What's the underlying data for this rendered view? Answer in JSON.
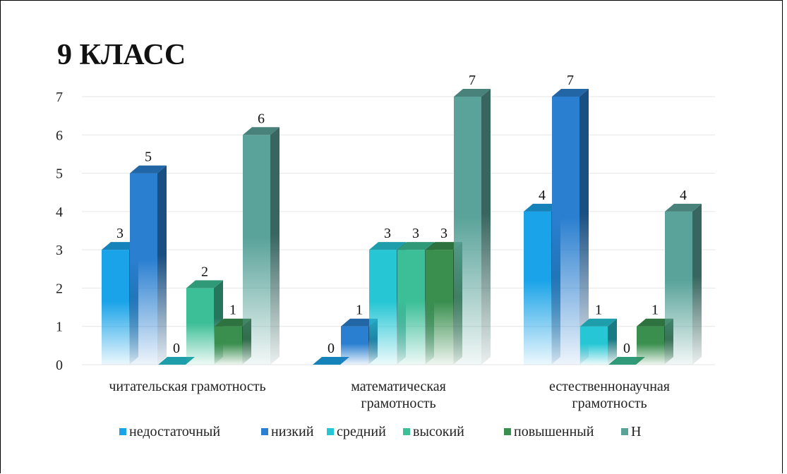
{
  "chart_data": {
    "type": "bar",
    "title": "9 КЛАСС",
    "categories": [
      [
        "читательская грамотность"
      ],
      [
        "математическая",
        "грамотность"
      ],
      [
        "естественнонаучная",
        "грамотность"
      ]
    ],
    "series": [
      {
        "name": "недостаточный",
        "values": [
          3,
          0,
          4
        ],
        "color": "#1aa3e8"
      },
      {
        "name": "низкий",
        "values": [
          5,
          1,
          7
        ],
        "color": "#2a7fd0"
      },
      {
        "name": "средний",
        "values": [
          0,
          3,
          1
        ],
        "color": "#26c6d4"
      },
      {
        "name": "высокий",
        "values": [
          2,
          3,
          0
        ],
        "color": "#3cbf96"
      },
      {
        "name": "повышенный",
        "values": [
          1,
          3,
          1
        ],
        "color": "#3a8f4f"
      },
      {
        "name": "Н",
        "values": [
          6,
          7,
          4
        ],
        "color": "#5aa39a"
      }
    ],
    "ylim": [
      0,
      7
    ],
    "yticks": [
      0,
      1,
      2,
      3,
      4,
      5,
      6,
      7
    ],
    "grid": true,
    "legend": "bottom"
  }
}
